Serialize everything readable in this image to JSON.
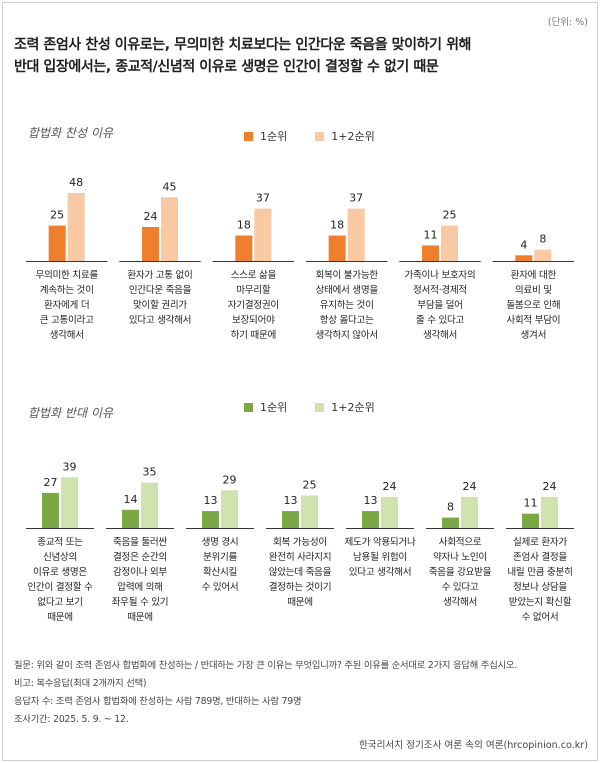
{
  "unit_label": "(단위: %)",
  "headline": {
    "line1": "조력 존엄사 찬성 이유로는, 무의미한 치료보다는 인간다운 죽음을 맞이하기 위해",
    "line2": "반대 입장에서는, 종교적/신념적 이유로 생명은 인간이 결정할 수 없기 때문"
  },
  "colors": {
    "support_first": "#ef7f2c",
    "support_both": "#f8c9a3",
    "oppose_first": "#7aa844",
    "oppose_both": "#cfe3ae"
  },
  "chart_data": [
    {
      "type": "bar",
      "title": "합법화 찬성 이유",
      "categories": [
        "무의미한 치료를 계속하는 것이 환자에게 더 큰 고통이라고 생각해서",
        "환자가 고통 없이 인간다운 죽음을 맞이할 권리가 있다고 생각해서",
        "스스로 삶을 마무리할 자기결정권이 보장되어야 하기 때문에",
        "회복이 불가능한 상태에서 생명을 유지하는 것이 항상 옳다고는 생각하지 않아서",
        "가족이나 보호자의 정서적·경제적 부담을 덜어 줄 수 있다고 생각해서",
        "환자에 대한 의료비 및 돌봄으로 인해 사회적 부담이 생겨서"
      ],
      "category_lines": [
        [
          "무의미한 치료를",
          "계속하는 것이",
          "환자에게 더",
          "큰 고통이라고",
          "생각해서"
        ],
        [
          "환자가 고통 없이",
          "인간다운 죽음을",
          "맞이할 권리가",
          "있다고 생각해서"
        ],
        [
          "스스로 삶을",
          "마무리할",
          "자기결정권이",
          "보장되어야",
          "하기 때문에"
        ],
        [
          "회복이 불가능한",
          "상태에서 생명을",
          "유지하는 것이",
          "항상 옳다고는",
          "생각하지 않아서"
        ],
        [
          "가족이나 보호자의",
          "정서적·경제적",
          "부담을 덜어",
          "줄 수 있다고",
          "생각해서"
        ],
        [
          "환자에 대한",
          "의료비 및",
          "돌봄으로 인해",
          "사회적 부담이",
          "생겨서"
        ]
      ],
      "series": [
        {
          "name": "1순위",
          "values": [
            25,
            24,
            18,
            18,
            11,
            4
          ]
        },
        {
          "name": "1+2순위",
          "values": [
            48,
            45,
            37,
            37,
            25,
            8
          ]
        }
      ],
      "ylim": [
        0,
        50
      ],
      "legend": "top-center"
    },
    {
      "type": "bar",
      "title": "합법화 반대 이유",
      "categories": [
        "종교적 또는 신념상의 이유로 생명은 인간이 결정할 수 없다고 보기 때문에",
        "죽음을 둘러싼 결정은 순간의 감정이나 외부 압력에 의해 좌우될 수 있기 때문에",
        "생명 경시 분위기를 확산시킬 수 있어서",
        "회복 가능성이 완전히 사라지지 않았는데 죽음을 결정하는 것이기 때문에",
        "제도가 악용되거나 남용될 위험이 있다고 생각해서",
        "사회적으로 약자나 노인이 죽음을 강요받을 수 있다고 생각해서",
        "실제로 환자가 존엄사 결정을 내릴 만큼 충분히 정보나 상담을 받았는지 확신할 수 없어서"
      ],
      "category_lines": [
        [
          "종교적 또는",
          "신념상의",
          "이유로 생명은",
          "인간이 결정할 수",
          "없다고 보기",
          "때문에"
        ],
        [
          "죽음을 둘러싼",
          "결정은 순간의",
          "감정이나 외부",
          "압력에 의해",
          "좌우될 수 있기",
          "때문에"
        ],
        [
          "생명 경시",
          "분위기를",
          "확산시킬",
          "수 있어서"
        ],
        [
          "회복 가능성이",
          "완전히 사라지지",
          "않았는데 죽음을",
          "결정하는 것이기",
          "때문에"
        ],
        [
          "제도가 악용되거나",
          "남용될 위험이",
          "있다고 생각해서"
        ],
        [
          "사회적으로",
          "약자나 노인이",
          "죽음을 강요받을",
          "수 있다고",
          "생각해서"
        ],
        [
          "실제로 환자가",
          "존엄사 결정을",
          "내릴 만큼 충분히",
          "정보나 상담을",
          "받았는지 확신할",
          "수 없어서"
        ]
      ],
      "series": [
        {
          "name": "1순위",
          "values": [
            27,
            14,
            13,
            13,
            13,
            8,
            11
          ]
        },
        {
          "name": "1+2순위",
          "values": [
            39,
            35,
            29,
            25,
            24,
            24,
            24
          ]
        }
      ],
      "ylim": [
        0,
        50
      ],
      "legend": "top-center"
    }
  ],
  "footer": {
    "question": "질문:  위와 같이 조력 존엄사 합법화에 찬성하는 / 반대하는 가장 큰 이유는 무엇입니까? 주된 이유를 순서대로 2가지 응답해 주십시오.",
    "note": "비고: 복수응답(최대 2개까지 선택)",
    "respondents": "응답자 수: 조력 존엄사 합법화에 찬성하는 사람 789명, 반대하는 사람 79명",
    "period": "조사기간: 2025. 5. 9. ~ 12.",
    "source": "한국리서치 정기조사 여론 속의 여론(hrcopinion.co.kr)"
  }
}
